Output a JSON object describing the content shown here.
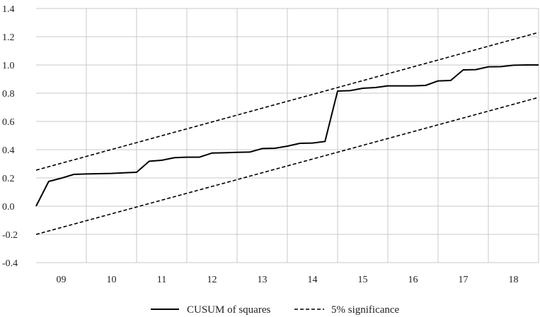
{
  "chart_data": {
    "type": "line",
    "title": "",
    "xlabel": "",
    "ylabel": "",
    "xlim": [
      2008.5,
      2018.5
    ],
    "ylim": [
      -0.4,
      1.4
    ],
    "y_ticks": [
      -0.4,
      -0.2,
      0.0,
      0.2,
      0.4,
      0.6,
      0.8,
      1.0,
      1.2,
      1.4
    ],
    "y_tick_labels": [
      "-0.4",
      "-0.2",
      "0.0",
      "0.2",
      "0.4",
      "0.6",
      "0.8",
      "1.0",
      "1.2",
      "1.4"
    ],
    "x_tick_labels": [
      "09",
      "10",
      "11",
      "12",
      "13",
      "14",
      "15",
      "16",
      "17",
      "18"
    ],
    "grid": true,
    "legend_position": "bottom",
    "series": [
      {
        "name": "CUSUM of squares",
        "style": "solid",
        "color": "#000000",
        "x": [
          2008.5,
          2008.75,
          2009.0,
          2009.25,
          2009.5,
          2009.75,
          2010.0,
          2010.25,
          2010.5,
          2010.75,
          2011.0,
          2011.25,
          2011.5,
          2011.75,
          2012.0,
          2012.25,
          2012.5,
          2012.75,
          2013.0,
          2013.25,
          2013.5,
          2013.75,
          2014.0,
          2014.25,
          2014.5,
          2014.75,
          2015.0,
          2015.25,
          2015.5,
          2015.75,
          2016.0,
          2016.25,
          2016.5,
          2016.75,
          2017.0,
          2017.25,
          2017.5,
          2017.75,
          2018.0,
          2018.25,
          2018.5
        ],
        "values": [
          0.0,
          0.175,
          0.198,
          0.225,
          0.228,
          0.23,
          0.232,
          0.236,
          0.24,
          0.318,
          0.325,
          0.343,
          0.347,
          0.347,
          0.376,
          0.378,
          0.381,
          0.383,
          0.408,
          0.41,
          0.425,
          0.445,
          0.447,
          0.458,
          0.815,
          0.818,
          0.835,
          0.84,
          0.852,
          0.852,
          0.852,
          0.855,
          0.887,
          0.89,
          0.965,
          0.967,
          0.987,
          0.988,
          0.998,
          1.0,
          1.0
        ]
      },
      {
        "name": "5% significance",
        "style": "dashed",
        "color": "#000000",
        "x": [
          2008.5,
          2018.5
        ],
        "values": [
          0.255,
          1.23
        ]
      },
      {
        "name": "",
        "style": "dashed",
        "color": "#000000",
        "x": [
          2008.5,
          2018.5
        ],
        "values": [
          -0.2,
          0.77
        ]
      }
    ],
    "legend": [
      {
        "label": "CUSUM of squares",
        "style": "solid"
      },
      {
        "label": "5% significance",
        "style": "dashed"
      }
    ]
  }
}
